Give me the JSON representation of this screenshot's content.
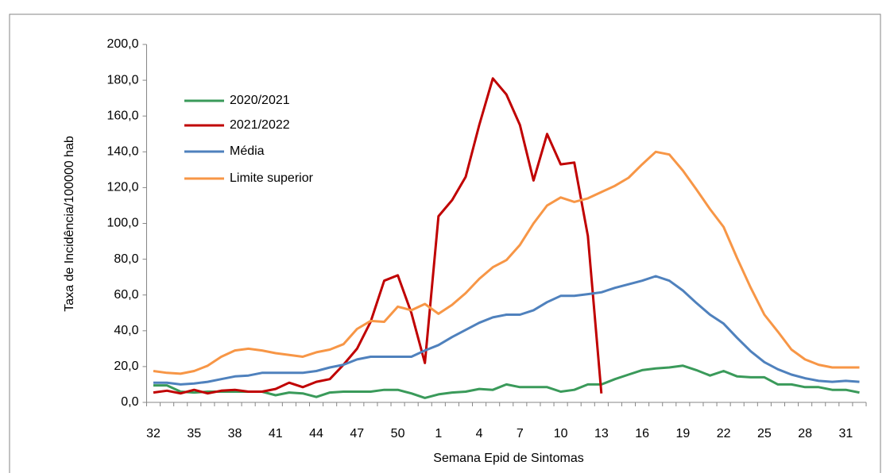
{
  "chart_data": {
    "type": "line",
    "x_label": "Semana Epid de Sintomas",
    "y_label": "Taxa de Incidência/100000 hab",
    "categories": [
      "32",
      null,
      null,
      "35",
      null,
      null,
      "38",
      null,
      null,
      "41",
      null,
      null,
      "44",
      null,
      null,
      "47",
      null,
      null,
      "50",
      null,
      null,
      "1",
      null,
      null,
      "4",
      null,
      null,
      "7",
      null,
      null,
      "10",
      null,
      null,
      "13",
      null,
      null,
      "16",
      null,
      null,
      "19",
      null,
      null,
      "22",
      null,
      null,
      "25",
      null,
      null,
      "28",
      null,
      null,
      "31",
      null
    ],
    "ylim": [
      0,
      200
    ],
    "yticks": [
      {
        "value": 0,
        "label": "0,0"
      },
      {
        "value": 20,
        "label": "20,0"
      },
      {
        "value": 40,
        "label": "40,0"
      },
      {
        "value": 60,
        "label": "60,0"
      },
      {
        "value": 80,
        "label": "80,0"
      },
      {
        "value": 100,
        "label": "100,0"
      },
      {
        "value": 120,
        "label": "120,0"
      },
      {
        "value": 140,
        "label": "140,0"
      },
      {
        "value": 160,
        "label": "160,0"
      },
      {
        "value": 180,
        "label": "180,0"
      },
      {
        "value": 200,
        "label": "200,0"
      }
    ],
    "legend": "upper left",
    "series": [
      {
        "name": "2020/2021",
        "color": "#3a9a5a",
        "values": [
          9.5,
          9.5,
          6,
          5.5,
          6,
          6,
          6,
          6,
          6,
          4,
          5.5,
          5,
          3,
          5.5,
          6,
          6,
          6,
          7,
          7,
          5,
          2.5,
          4.5,
          5.5,
          6,
          7.5,
          7,
          10,
          8.5,
          8.5,
          8.5,
          6,
          7,
          10,
          10,
          13,
          15.5,
          18,
          19,
          19.5,
          20.5,
          18,
          15,
          17.5,
          14.5,
          14,
          14,
          10,
          10,
          8.5,
          8.5,
          7,
          7,
          5.5
        ]
      },
      {
        "name": "2021/2022",
        "color": "#c00000",
        "values": [
          5.5,
          6.5,
          5,
          7,
          5,
          6.5,
          7,
          6,
          6,
          7.5,
          11,
          8.5,
          11.5,
          13,
          21,
          30,
          45,
          68,
          71,
          50,
          22,
          104,
          113,
          126,
          155,
          181,
          172,
          155,
          124,
          150,
          133,
          134,
          93,
          5,
          null,
          null,
          null,
          null,
          null,
          null,
          null,
          null,
          null,
          null,
          null,
          null,
          null,
          null,
          null,
          null,
          null,
          null,
          null
        ]
      },
      {
        "name": "Média",
        "color": "#4f81bd",
        "values": [
          11,
          11,
          10,
          10.5,
          11.5,
          13,
          14.5,
          15,
          16.5,
          16.5,
          16.5,
          16.5,
          17.5,
          19.5,
          21,
          24,
          25.5,
          25.5,
          25.5,
          25.5,
          29,
          32,
          36.5,
          40.5,
          44.5,
          47.5,
          49,
          49,
          51.5,
          56,
          59.5,
          59.5,
          60.5,
          61.5,
          64,
          66,
          68,
          70.5,
          68,
          62.5,
          55.5,
          49,
          44,
          36,
          28.5,
          22.5,
          18.5,
          15.5,
          13.5,
          12,
          11.5,
          12,
          11.5
        ]
      },
      {
        "name": "Limite superior",
        "color": "#f79646",
        "values": [
          17.5,
          16.5,
          16,
          17.5,
          20.5,
          25.5,
          29,
          30,
          29,
          27.5,
          26.5,
          25.5,
          28,
          29.5,
          32.5,
          41,
          45.5,
          45,
          53.5,
          51.5,
          55,
          49.5,
          54.5,
          61,
          69,
          75.5,
          79.5,
          88,
          100,
          110,
          114.5,
          112,
          114,
          117.5,
          121,
          125.5,
          133,
          140,
          138.5,
          129.5,
          119,
          108,
          98,
          80.5,
          64,
          49,
          39.5,
          29.5,
          24,
          21,
          19.5,
          19.5,
          19.5
        ]
      }
    ]
  }
}
